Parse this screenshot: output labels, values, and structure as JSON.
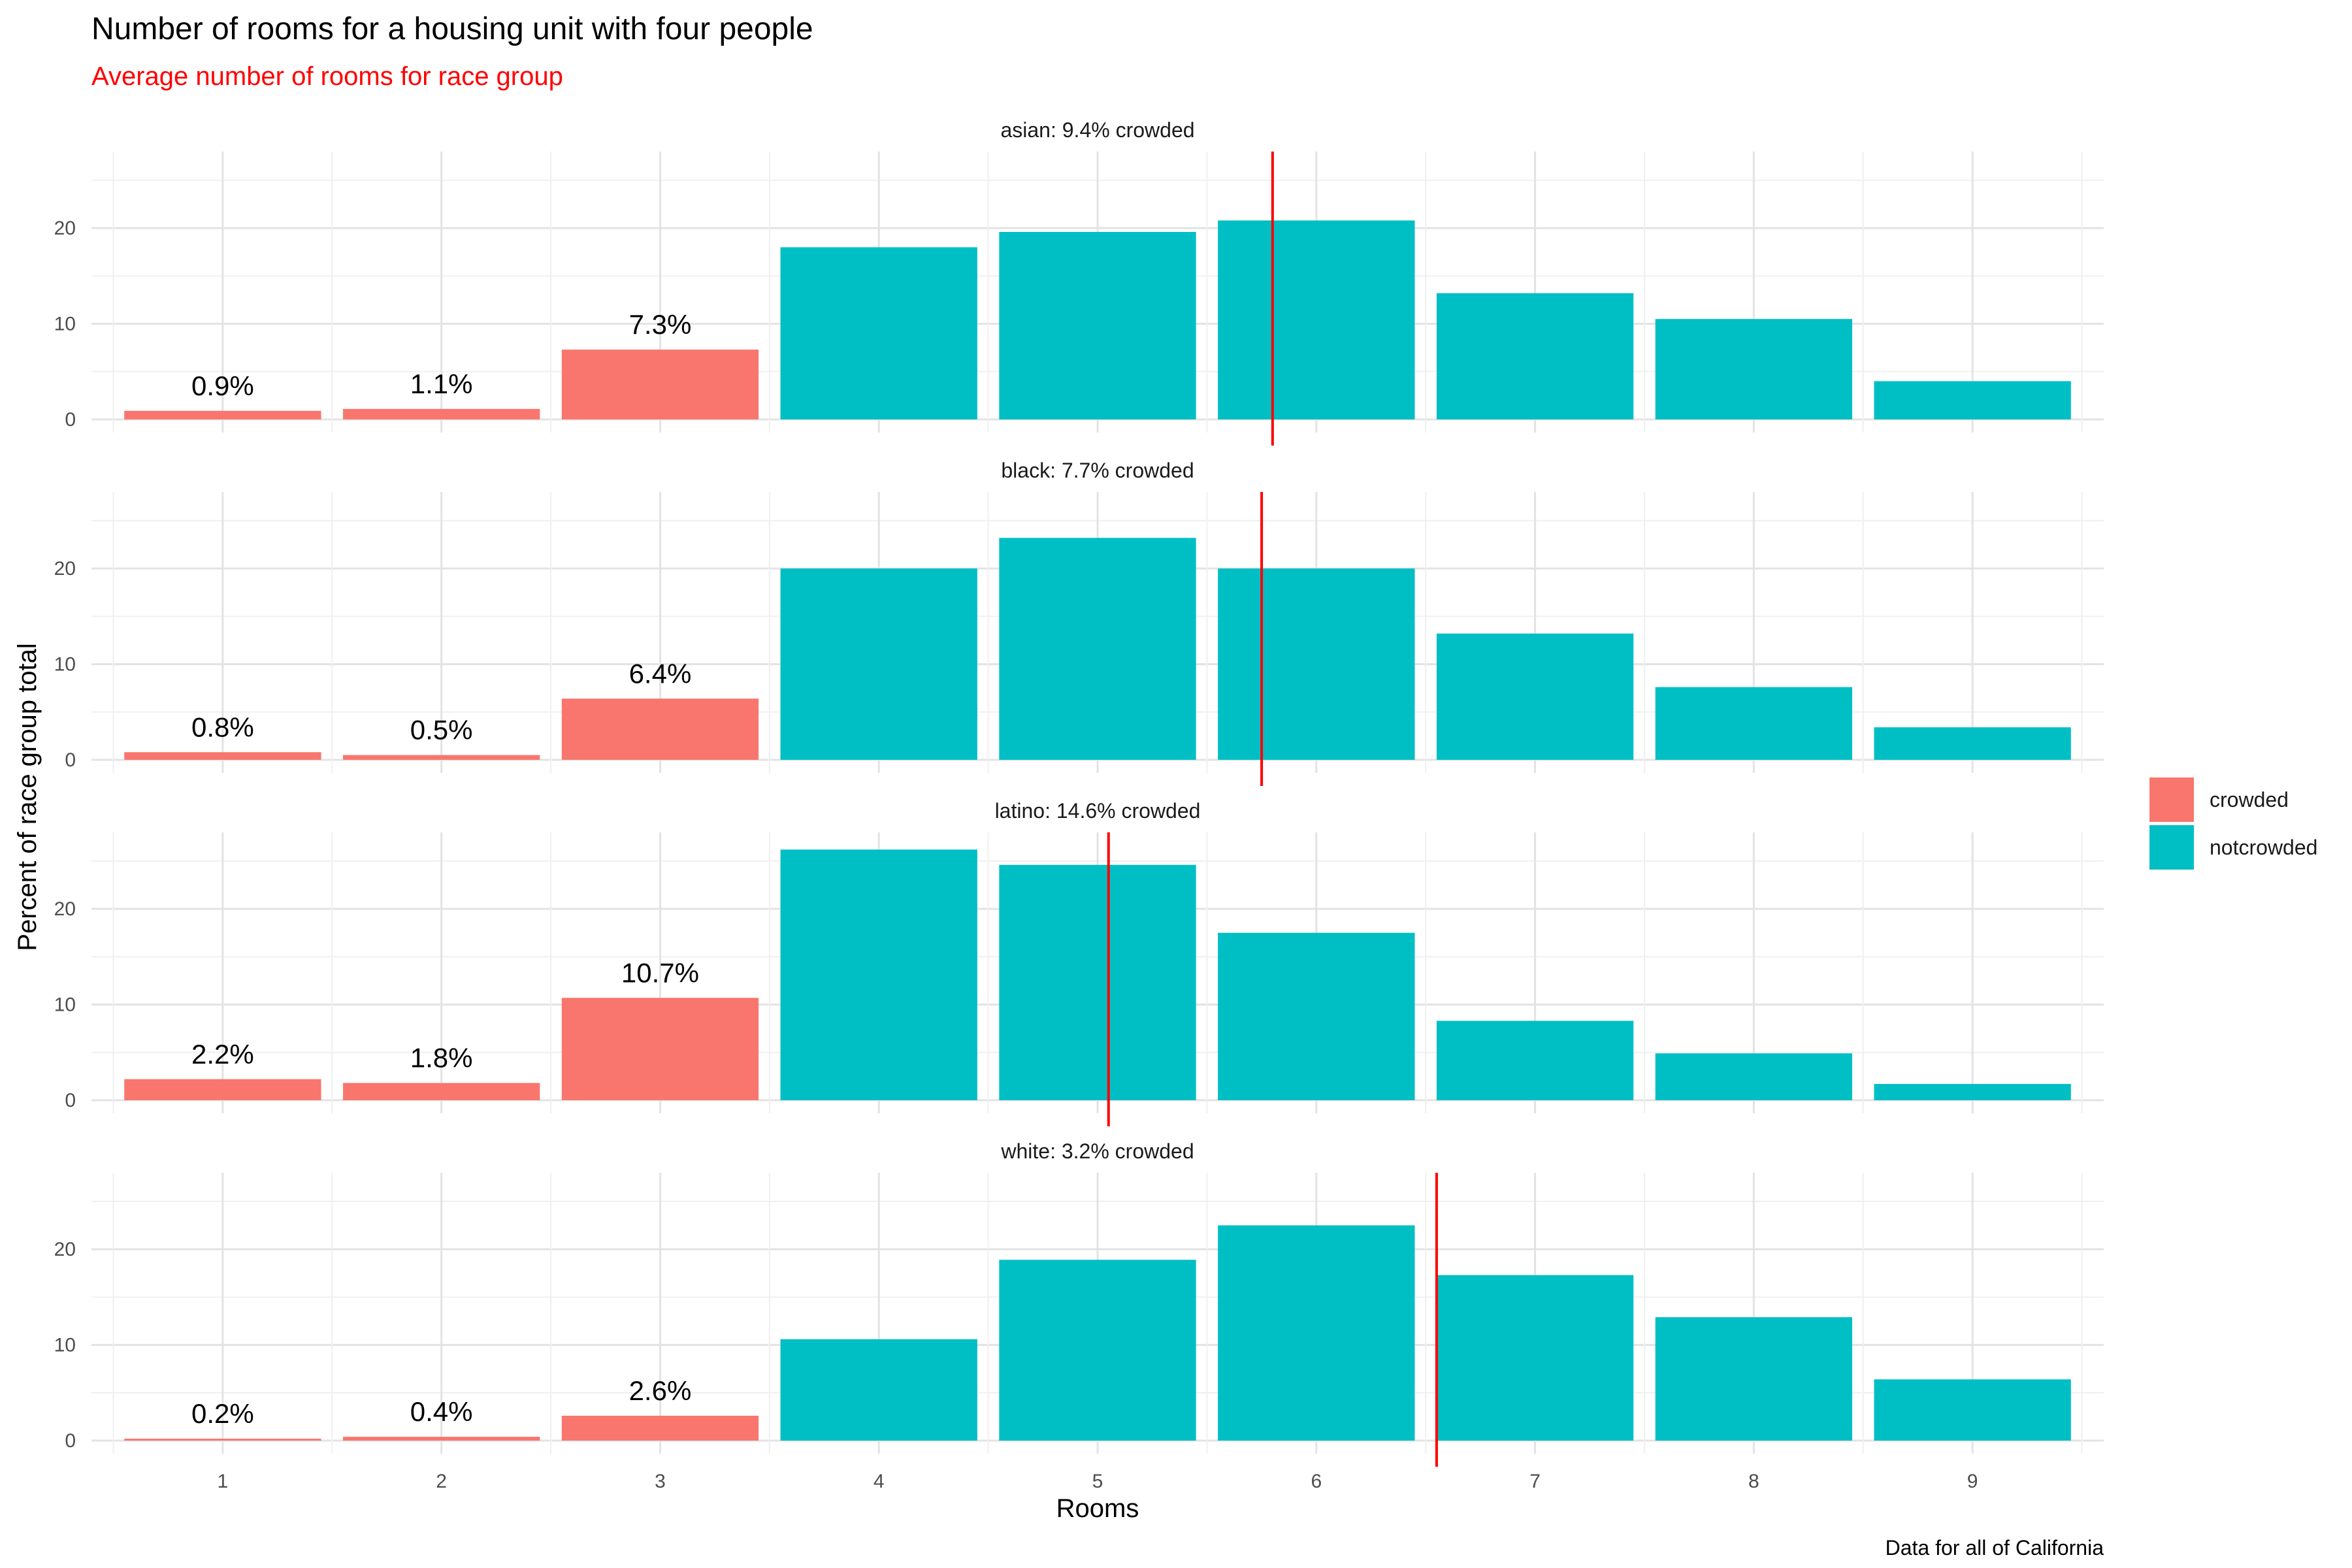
{
  "chart_data": {
    "type": "bar",
    "title": "Number of rooms for a housing unit with four people",
    "subtitle": "Average number of rooms for race group",
    "xlabel": "Rooms",
    "ylabel": "Percent of race group total",
    "caption": "Data for all of California",
    "categories": [
      "1",
      "2",
      "3",
      "4",
      "5",
      "6",
      "7",
      "8",
      "9"
    ],
    "ylim": [
      0,
      28
    ],
    "yticks": [
      0,
      10,
      20
    ],
    "grid": true,
    "legend_position": "right",
    "legend": [
      {
        "label": "crowded",
        "color": "#F8766D"
      },
      {
        "label": "notcrowded",
        "color": "#00BFC4"
      }
    ],
    "mean_line_color": "#ff0000",
    "panels": [
      {
        "strip": "asian: 9.4% crowded",
        "values": [
          0.9,
          1.1,
          7.3,
          18.0,
          19.6,
          20.8,
          13.2,
          10.5,
          4.0
        ],
        "status": [
          "crowded",
          "crowded",
          "crowded",
          "notcrowded",
          "notcrowded",
          "notcrowded",
          "notcrowded",
          "notcrowded",
          "notcrowded"
        ],
        "labels": [
          "0.9%",
          "1.1%",
          "7.3%",
          "",
          "",
          "",
          "",
          "",
          ""
        ],
        "mean_rooms": 5.8
      },
      {
        "strip": "black: 7.7% crowded",
        "values": [
          0.8,
          0.5,
          6.4,
          20.0,
          23.2,
          20.0,
          13.2,
          7.6,
          3.4
        ],
        "status": [
          "crowded",
          "crowded",
          "crowded",
          "notcrowded",
          "notcrowded",
          "notcrowded",
          "notcrowded",
          "notcrowded",
          "notcrowded"
        ],
        "labels": [
          "0.8%",
          "0.5%",
          "6.4%",
          "",
          "",
          "",
          "",
          "",
          ""
        ],
        "mean_rooms": 5.75
      },
      {
        "strip": "latino: 14.6% crowded",
        "values": [
          2.2,
          1.8,
          10.7,
          26.2,
          24.6,
          17.5,
          8.3,
          4.9,
          1.7
        ],
        "status": [
          "crowded",
          "crowded",
          "crowded",
          "notcrowded",
          "notcrowded",
          "notcrowded",
          "notcrowded",
          "notcrowded",
          "notcrowded"
        ],
        "labels": [
          "2.2%",
          "1.8%",
          "10.7%",
          "",
          "",
          "",
          "",
          "",
          ""
        ],
        "mean_rooms": 5.05
      },
      {
        "strip": "white: 3.2% crowded",
        "values": [
          0.2,
          0.4,
          2.6,
          10.6,
          18.9,
          22.5,
          17.3,
          12.9,
          6.4
        ],
        "status": [
          "crowded",
          "crowded",
          "crowded",
          "notcrowded",
          "notcrowded",
          "notcrowded",
          "notcrowded",
          "notcrowded",
          "notcrowded"
        ],
        "labels": [
          "0.2%",
          "0.4%",
          "2.6%",
          "",
          "",
          "",
          "",
          "",
          ""
        ],
        "mean_rooms": 6.55
      }
    ]
  }
}
